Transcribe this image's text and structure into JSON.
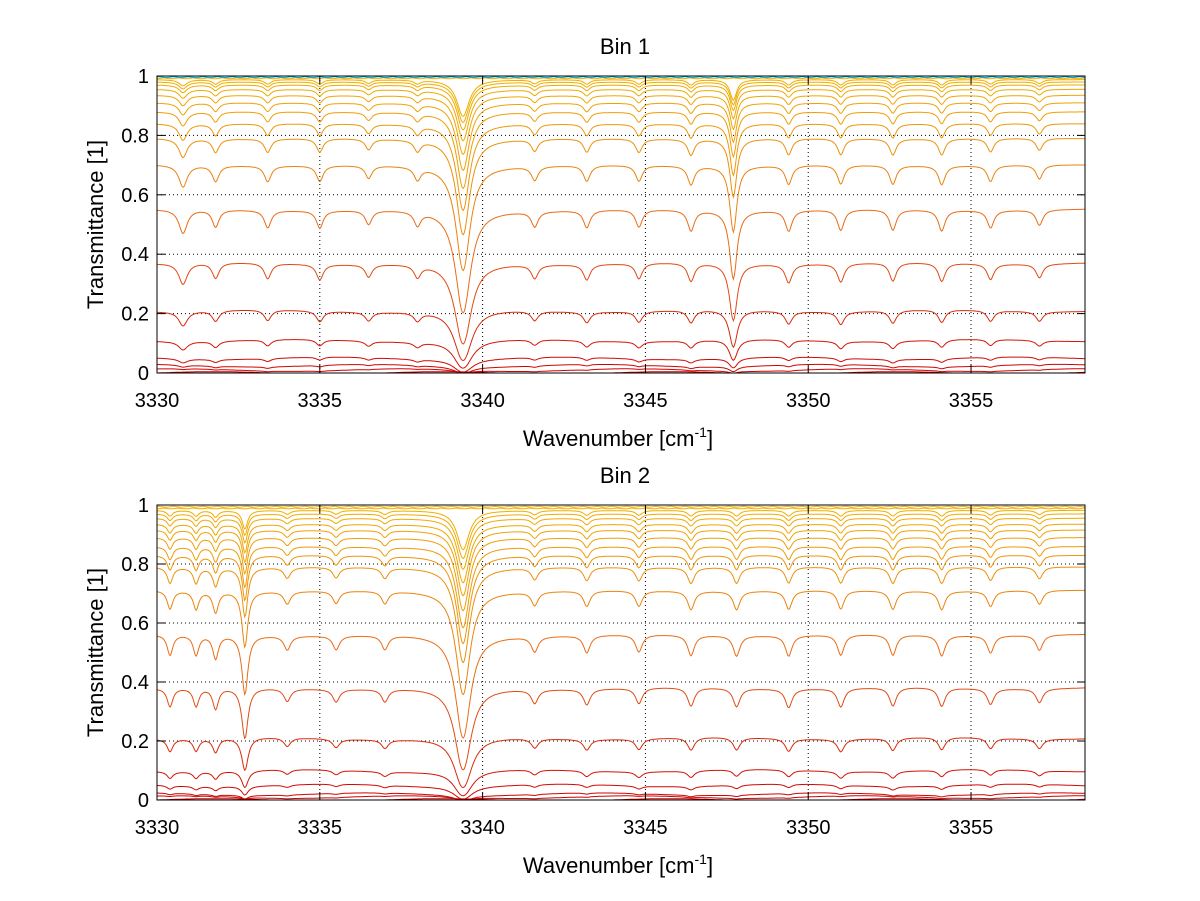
{
  "chart_data": [
    {
      "type": "line",
      "title": "Bin 1",
      "xlabel": "Wavenumber [cm",
      "xlabel_sup": "-1",
      "xlabel_end": "]",
      "ylabel": "Transmittance [1]",
      "xlim": [
        3330,
        3358.5
      ],
      "ylim": [
        0,
        1
      ],
      "x_ticks": [
        "3330",
        "3335",
        "3340",
        "3345",
        "3350",
        "3355"
      ],
      "y_ticks": [
        "0",
        "0.2",
        "0.4",
        "0.6",
        "0.8",
        "1"
      ],
      "grid": true,
      "baselines": [
        0.0,
        0.01,
        0.025,
        0.05,
        0.11,
        0.21,
        0.37,
        0.55,
        0.7,
        0.79,
        0.84,
        0.88,
        0.91,
        0.935,
        0.955,
        0.97,
        0.98,
        0.988,
        0.994,
        0.998
      ],
      "absorption_lines": [
        {
          "x": 3330.8,
          "depth": 0.35,
          "width": 0.15
        },
        {
          "x": 3331.8,
          "depth": 0.25,
          "width": 0.12
        },
        {
          "x": 3333.4,
          "depth": 0.25,
          "width": 0.12
        },
        {
          "x": 3335.0,
          "depth": 0.25,
          "width": 0.12
        },
        {
          "x": 3336.5,
          "depth": 0.2,
          "width": 0.12
        },
        {
          "x": 3338.0,
          "depth": 0.2,
          "width": 0.12
        },
        {
          "x": 3339.4,
          "depth": 2.2,
          "width": 0.22
        },
        {
          "x": 3341.6,
          "depth": 0.22,
          "width": 0.12
        },
        {
          "x": 3343.2,
          "depth": 0.25,
          "width": 0.12
        },
        {
          "x": 3344.8,
          "depth": 0.25,
          "width": 0.12
        },
        {
          "x": 3346.4,
          "depth": 0.3,
          "width": 0.12
        },
        {
          "x": 3347.7,
          "depth": 1.2,
          "width": 0.12
        },
        {
          "x": 3349.4,
          "depth": 0.3,
          "width": 0.12
        },
        {
          "x": 3351.0,
          "depth": 0.3,
          "width": 0.12
        },
        {
          "x": 3352.6,
          "depth": 0.3,
          "width": 0.12
        },
        {
          "x": 3354.1,
          "depth": 0.3,
          "width": 0.12
        },
        {
          "x": 3355.6,
          "depth": 0.25,
          "width": 0.12
        },
        {
          "x": 3357.1,
          "depth": 0.22,
          "width": 0.12
        }
      ]
    },
    {
      "type": "line",
      "title": "Bin 2",
      "xlabel": "Wavenumber [cm",
      "xlabel_sup": "-1",
      "xlabel_end": "]",
      "ylabel": "Transmittance [1]",
      "xlim": [
        3330,
        3358.5
      ],
      "ylim": [
        0,
        1
      ],
      "x_ticks": [
        "3330",
        "3335",
        "3340",
        "3345",
        "3350",
        "3355"
      ],
      "y_ticks": [
        "0",
        "0.2",
        "0.4",
        "0.6",
        "0.8",
        "1"
      ],
      "grid": true,
      "baselines": [
        0.0,
        0.01,
        0.02,
        0.05,
        0.1,
        0.21,
        0.38,
        0.56,
        0.71,
        0.79,
        0.83,
        0.86,
        0.89,
        0.915,
        0.935,
        0.955,
        0.97,
        0.982,
        0.99,
        0.996
      ],
      "absorption_lines": [
        {
          "x": 3330.4,
          "depth": 0.3,
          "width": 0.1
        },
        {
          "x": 3331.2,
          "depth": 0.3,
          "width": 0.1
        },
        {
          "x": 3331.8,
          "depth": 0.35,
          "width": 0.1
        },
        {
          "x": 3332.7,
          "depth": 1.0,
          "width": 0.1
        },
        {
          "x": 3334.0,
          "depth": 0.2,
          "width": 0.12
        },
        {
          "x": 3335.5,
          "depth": 0.2,
          "width": 0.12
        },
        {
          "x": 3337.0,
          "depth": 0.2,
          "width": 0.12
        },
        {
          "x": 3339.4,
          "depth": 2.2,
          "width": 0.22
        },
        {
          "x": 3341.6,
          "depth": 0.22,
          "width": 0.12
        },
        {
          "x": 3343.2,
          "depth": 0.25,
          "width": 0.12
        },
        {
          "x": 3344.8,
          "depth": 0.25,
          "width": 0.12
        },
        {
          "x": 3346.4,
          "depth": 0.3,
          "width": 0.12
        },
        {
          "x": 3347.8,
          "depth": 0.3,
          "width": 0.12
        },
        {
          "x": 3349.4,
          "depth": 0.3,
          "width": 0.12
        },
        {
          "x": 3351.0,
          "depth": 0.3,
          "width": 0.12
        },
        {
          "x": 3352.6,
          "depth": 0.3,
          "width": 0.12
        },
        {
          "x": 3354.1,
          "depth": 0.3,
          "width": 0.12
        },
        {
          "x": 3355.6,
          "depth": 0.25,
          "width": 0.12
        },
        {
          "x": 3357.1,
          "depth": 0.22,
          "width": 0.12
        }
      ]
    }
  ],
  "colors": {
    "low_transmittance": "#cc0000",
    "mid_transmittance": "#e8641a",
    "high_transmittance": "#f0b000",
    "top_noise": "#00b0d0",
    "grid": "#000000"
  }
}
